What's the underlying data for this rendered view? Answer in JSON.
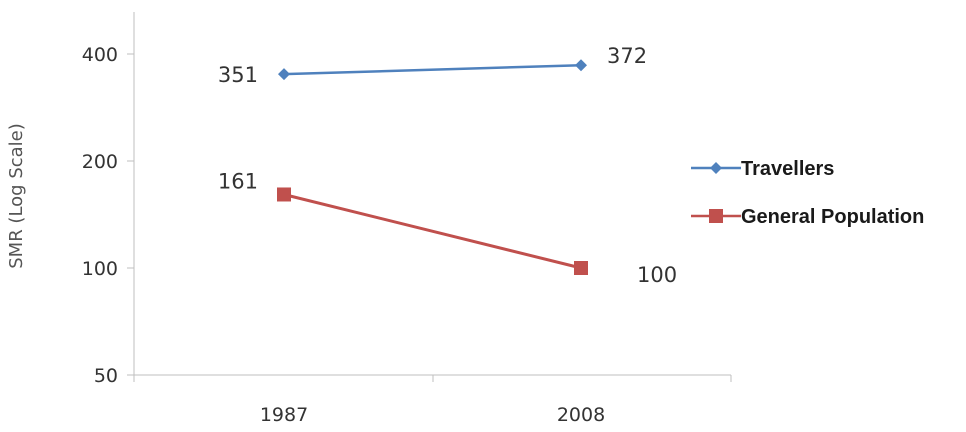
{
  "chart_data": {
    "type": "line",
    "x_categories": [
      "1987",
      "2008"
    ],
    "ylabel": "SMR (Log Scale)",
    "y_scale": "log",
    "y_ticks": [
      50,
      100,
      200,
      400
    ],
    "ylim": [
      50,
      400
    ],
    "grid": false,
    "legend_position": "right",
    "series": [
      {
        "name": "Travellers",
        "values": [
          351,
          372
        ],
        "labels": [
          "351",
          "372"
        ],
        "color": "#4f81bd",
        "marker": "diamond"
      },
      {
        "name": "General Population",
        "values": [
          161,
          100
        ],
        "labels": [
          "161",
          "100"
        ],
        "color": "#c0504d",
        "marker": "square"
      }
    ]
  }
}
